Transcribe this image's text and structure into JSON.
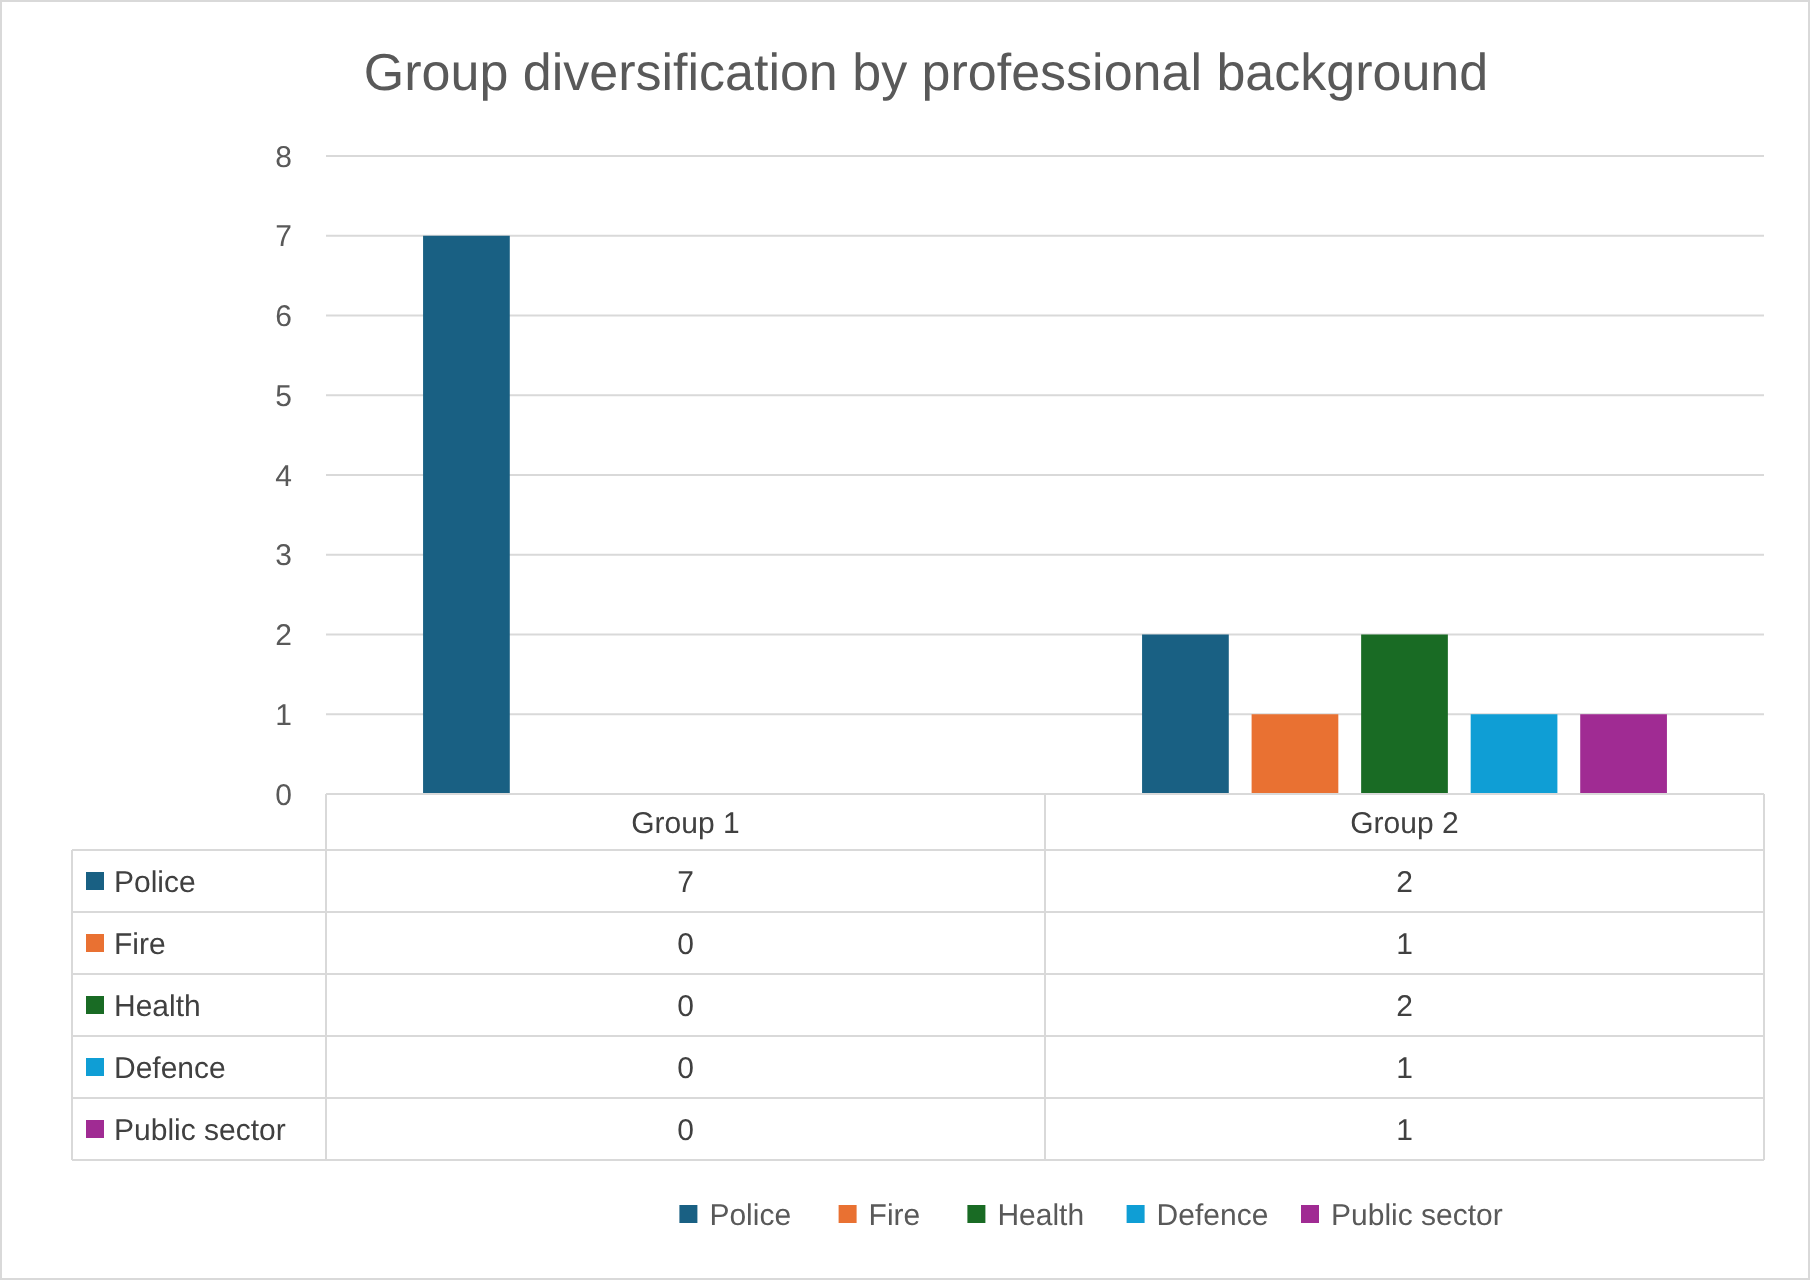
{
  "chart_data": {
    "type": "bar",
    "title": "Group diversification by professional background",
    "categories": [
      "Group 1",
      "Group 2"
    ],
    "series": [
      {
        "name": "Police",
        "color": "#196083",
        "values": [
          7,
          2
        ]
      },
      {
        "name": "Fire",
        "color": "#e97132",
        "values": [
          0,
          1
        ]
      },
      {
        "name": "Health",
        "color": "#196b24",
        "values": [
          0,
          2
        ]
      },
      {
        "name": "Defence",
        "color": "#0f9ed5",
        "values": [
          0,
          1
        ]
      },
      {
        "name": "Public sector",
        "color": "#a02b93",
        "values": [
          0,
          1
        ]
      }
    ],
    "ylim": [
      0,
      8
    ],
    "yticks": [
      0,
      1,
      2,
      3,
      4,
      5,
      6,
      7,
      8
    ],
    "grid": "y",
    "legend": "bottom",
    "data_labels": true
  }
}
